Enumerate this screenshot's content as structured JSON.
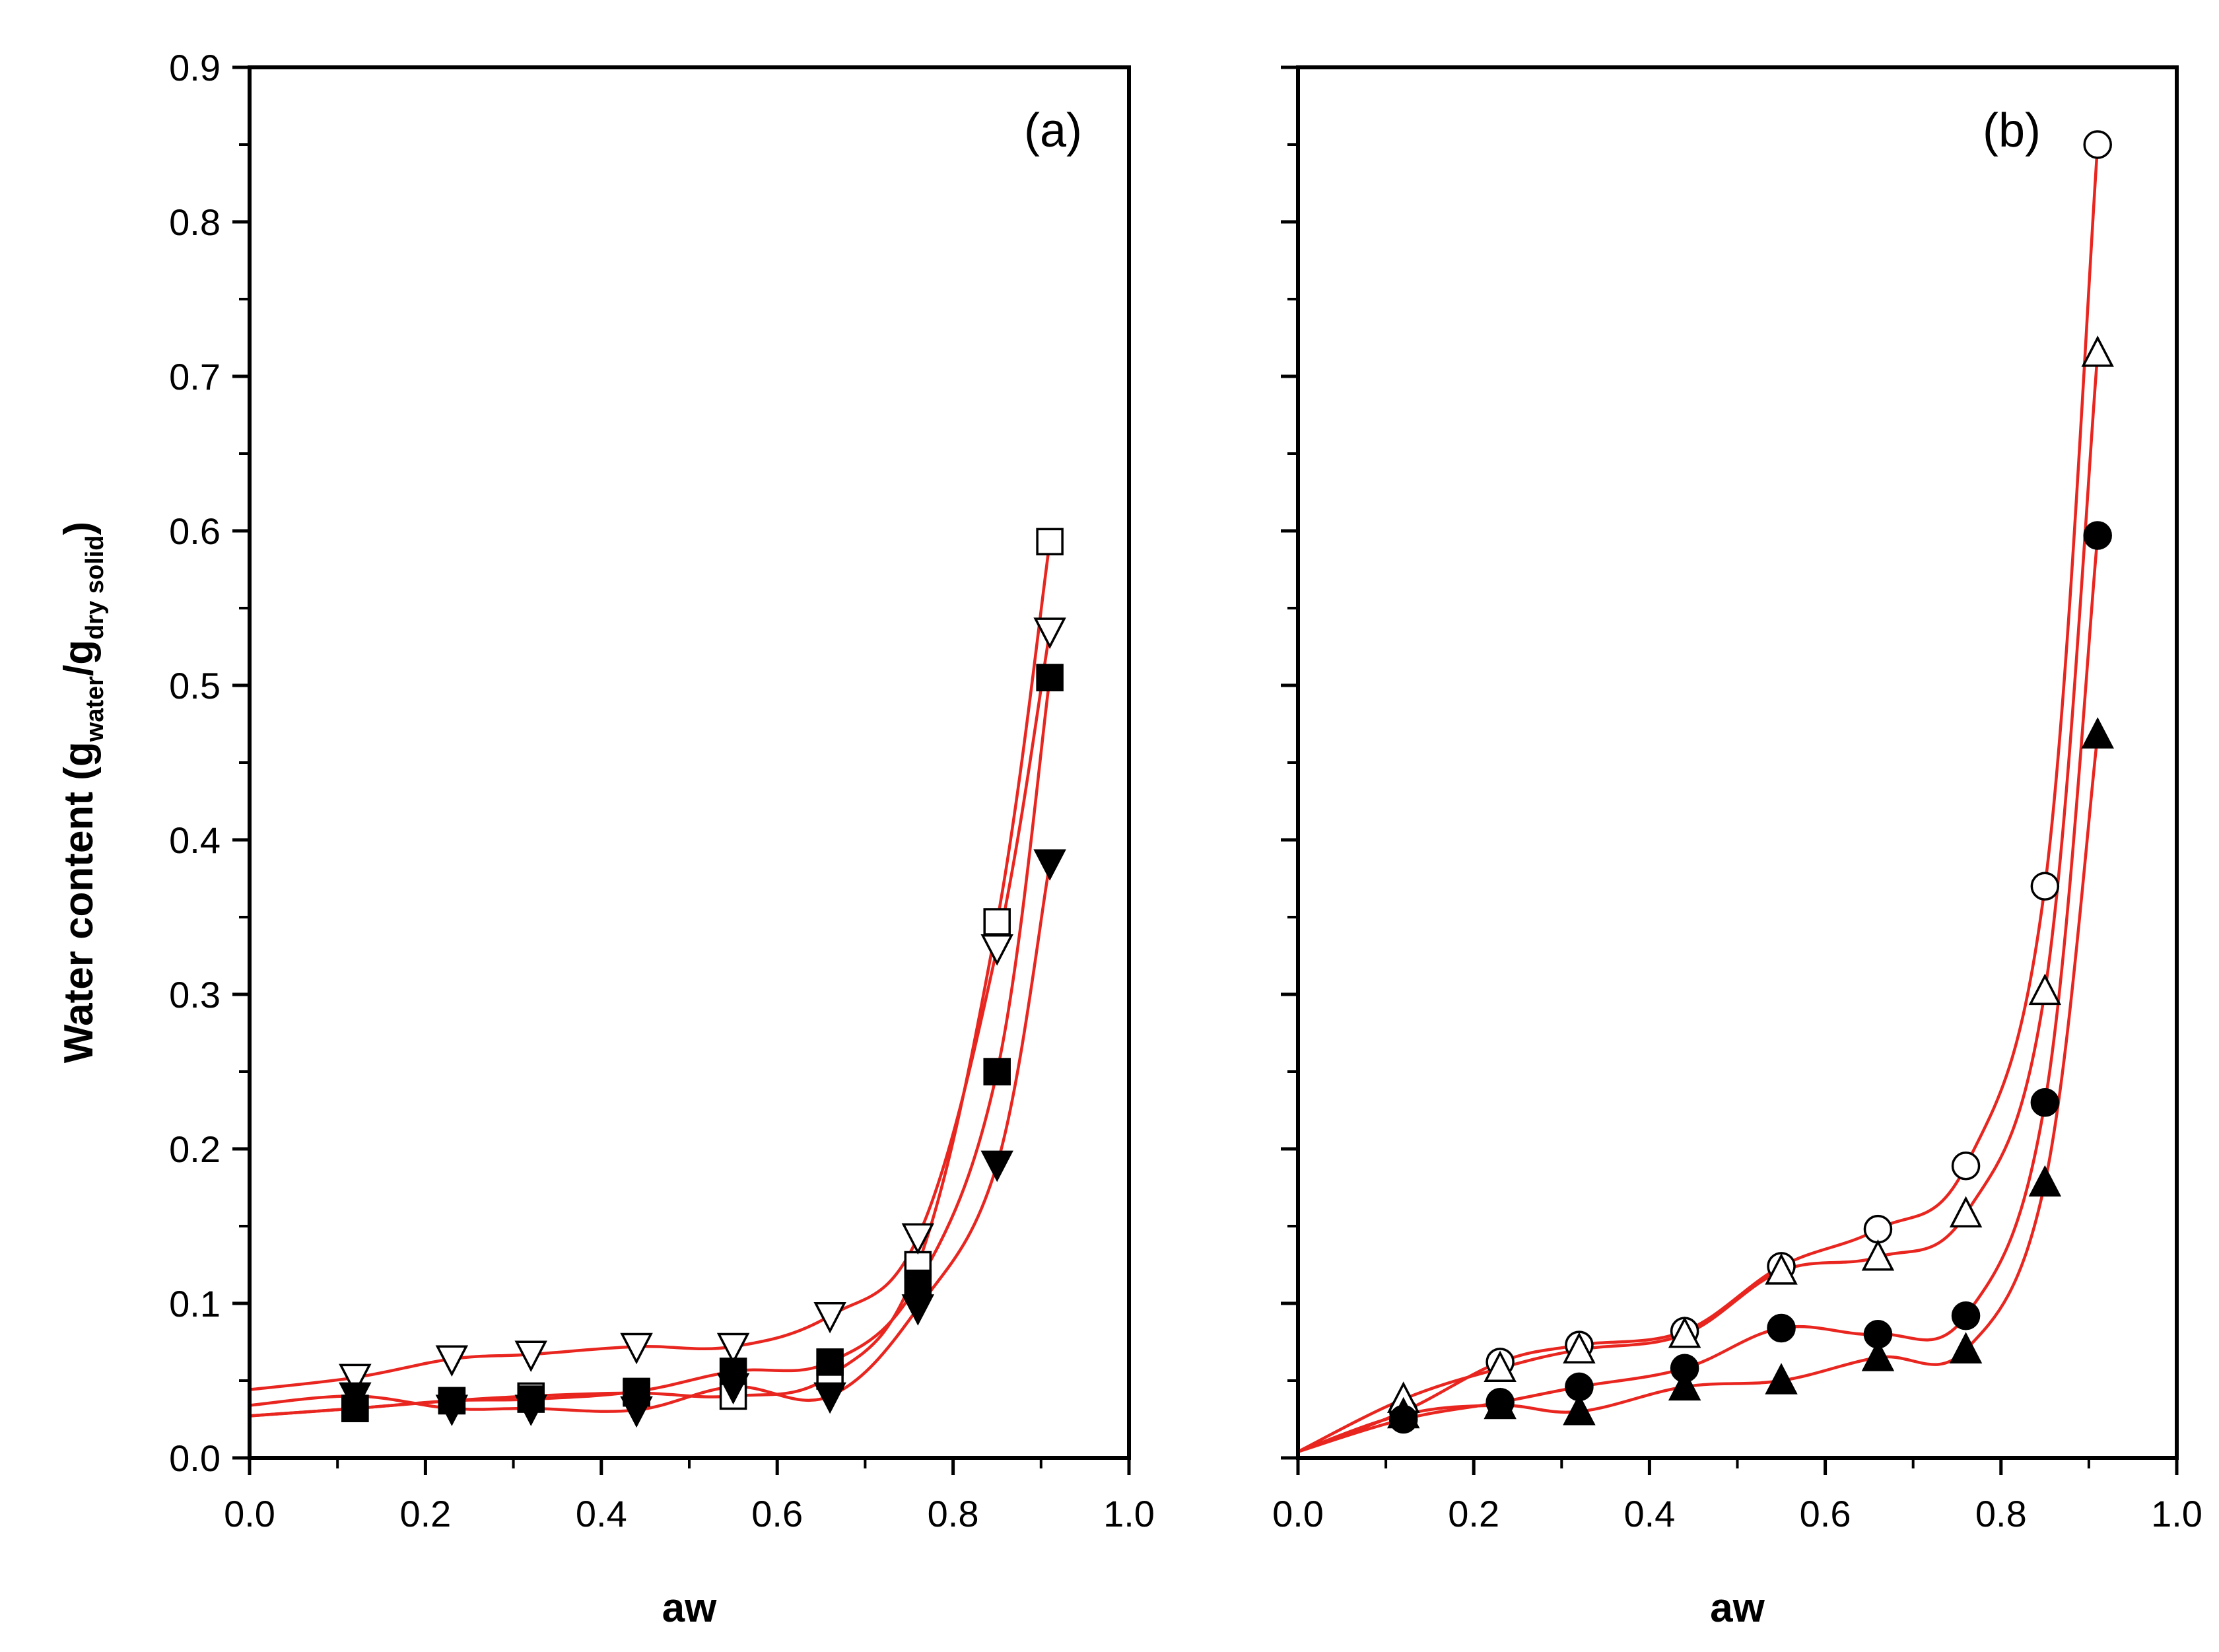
{
  "chart_data": [
    {
      "type": "scatter",
      "panel_label": "(a)",
      "xlabel": "aw",
      "ylabel_main": "Water content (g",
      "ylabel_sub1": "water",
      "ylabel_mid": "/g",
      "ylabel_sub2": "dry solid",
      "ylabel_end": ")",
      "xlim": [
        0.0,
        1.0
      ],
      "ylim": [
        0.0,
        0.9
      ],
      "x_ticks": [
        "0.0",
        "0.2",
        "0.4",
        "0.6",
        "0.8",
        "1.0"
      ],
      "y_ticks": [
        "0.0",
        "0.1",
        "0.2",
        "0.3",
        "0.4",
        "0.5",
        "0.6",
        "0.7",
        "0.8",
        "0.9"
      ],
      "fit_color": "#e8251f",
      "series": [
        {
          "marker": "square-open",
          "x": [
            0.12,
            0.23,
            0.32,
            0.44,
            0.55,
            0.66,
            0.76,
            0.85,
            0.91
          ],
          "y": [
            0.032,
            0.037,
            0.04,
            0.042,
            0.04,
            0.053,
            0.125,
            0.347,
            0.593
          ]
        },
        {
          "marker": "triangle-down-open",
          "x": [
            0.12,
            0.23,
            0.32,
            0.44,
            0.55,
            0.66,
            0.76,
            0.85,
            0.91
          ],
          "y": [
            0.052,
            0.064,
            0.067,
            0.072,
            0.072,
            0.092,
            0.143,
            0.33,
            0.535
          ]
        },
        {
          "marker": "square-filled",
          "x": [
            0.12,
            0.23,
            0.32,
            0.44,
            0.55,
            0.66,
            0.76,
            0.85,
            0.91
          ],
          "y": [
            0.032,
            0.037,
            0.038,
            0.043,
            0.056,
            0.062,
            0.113,
            0.25,
            0.505
          ]
        },
        {
          "marker": "triangle-down-filled",
          "x": [
            0.12,
            0.23,
            0.32,
            0.44,
            0.55,
            0.66,
            0.76,
            0.85,
            0.91
          ],
          "y": [
            0.04,
            0.032,
            0.032,
            0.031,
            0.046,
            0.04,
            0.097,
            0.19,
            0.385
          ]
        }
      ]
    },
    {
      "type": "scatter",
      "panel_label": "(b)",
      "xlabel": "aw",
      "xlim": [
        0.0,
        1.0
      ],
      "ylim": [
        0.0,
        0.9
      ],
      "x_ticks": [
        "0.0",
        "0.2",
        "0.4",
        "0.6",
        "0.8",
        "1.0"
      ],
      "fit_color": "#e8251f",
      "series": [
        {
          "marker": "circle-open",
          "x": [
            0.12,
            0.23,
            0.32,
            0.44,
            0.55,
            0.66,
            0.76,
            0.85,
            0.91
          ],
          "y": [
            0.03,
            0.062,
            0.073,
            0.082,
            0.124,
            0.148,
            0.189,
            0.37,
            0.85
          ]
        },
        {
          "marker": "triangle-up-open",
          "x": [
            0.12,
            0.23,
            0.32,
            0.44,
            0.55,
            0.66,
            0.76,
            0.85,
            0.91
          ],
          "y": [
            0.038,
            0.058,
            0.07,
            0.08,
            0.121,
            0.13,
            0.158,
            0.302,
            0.715
          ]
        },
        {
          "marker": "circle-filled",
          "x": [
            0.12,
            0.23,
            0.32,
            0.44,
            0.55,
            0.66,
            0.76,
            0.85,
            0.91
          ],
          "y": [
            0.025,
            0.036,
            0.046,
            0.058,
            0.084,
            0.08,
            0.092,
            0.23,
            0.597
          ]
        },
        {
          "marker": "triangle-up-filled",
          "x": [
            0.12,
            0.23,
            0.32,
            0.44,
            0.55,
            0.66,
            0.76,
            0.85,
            0.91
          ],
          "y": [
            0.028,
            0.034,
            0.03,
            0.046,
            0.05,
            0.065,
            0.07,
            0.178,
            0.468
          ]
        }
      ]
    }
  ]
}
